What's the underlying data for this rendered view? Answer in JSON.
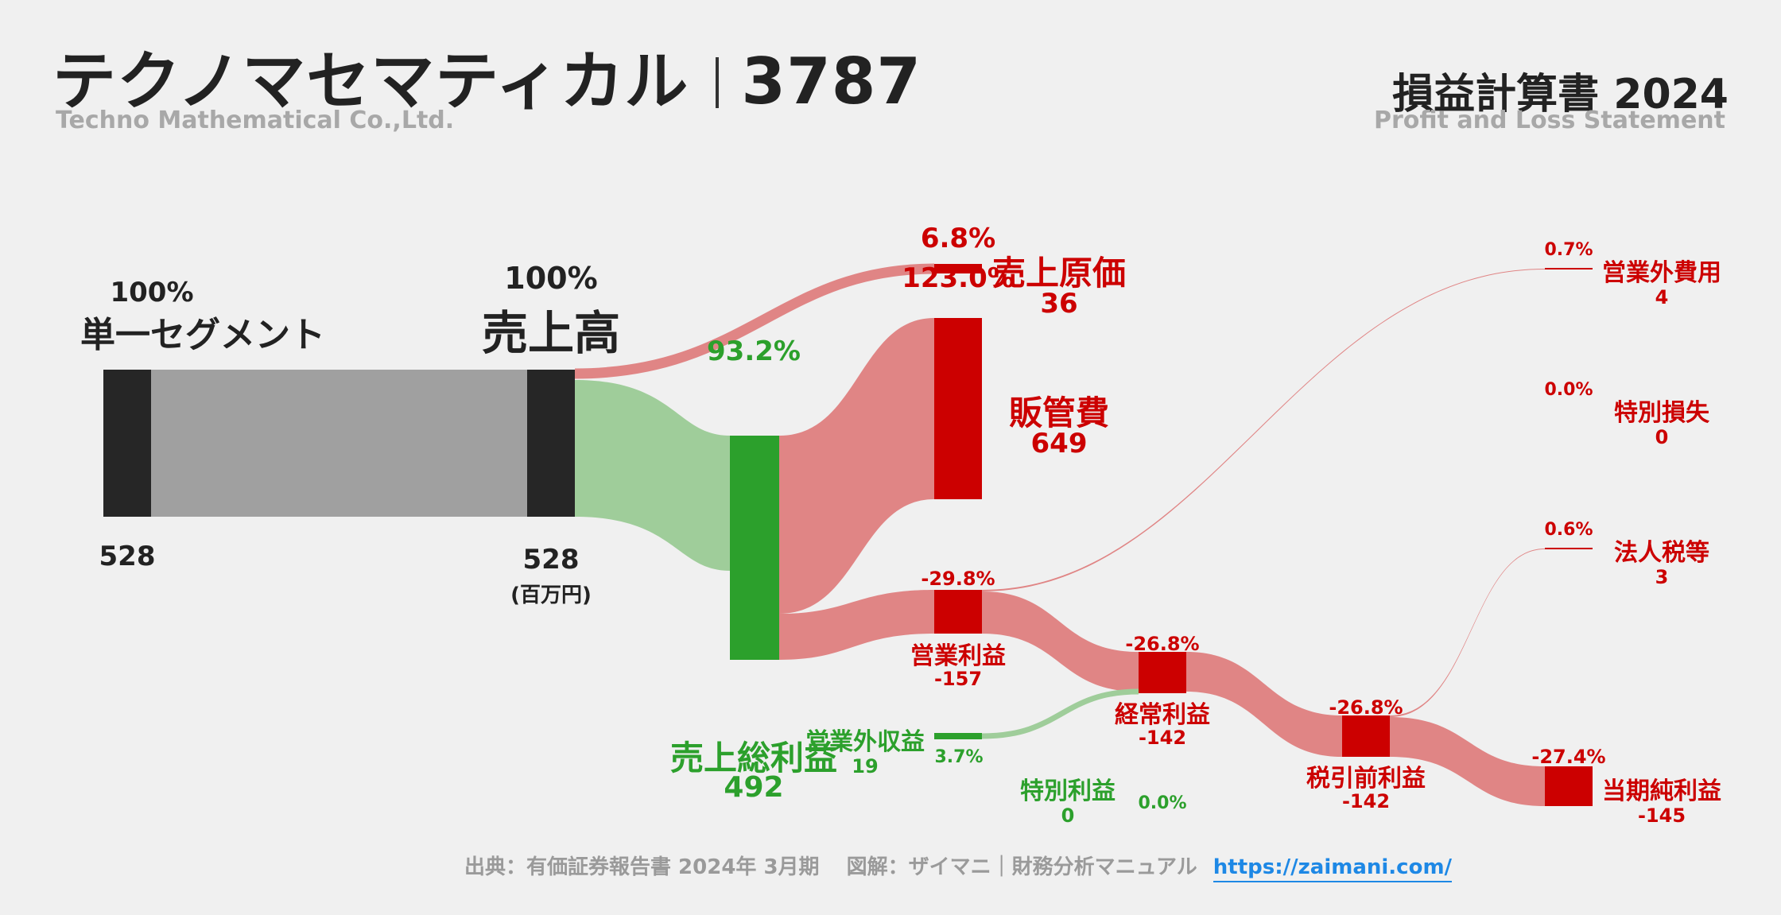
{
  "header": {
    "company": "テクノマセマティカル",
    "code": "3787",
    "company_en": "Techno Mathematical Co.,Ltd.",
    "statement": "損益計算書 2024",
    "statement_en": "Profit and Loss Statement"
  },
  "footer": {
    "source": "出典：有価証券報告書 2024年 3月期",
    "credit": "図解：ザイマニ｜財務分析マニュアル",
    "url": "https://zaimani.com/"
  },
  "unit": "(百万円)",
  "colors": {
    "dark": "#262626",
    "gray": "#a0a0a0",
    "green": "#2ca02c",
    "green_light": "#9fcd9a",
    "red": "#cc0000",
    "red_light": "#e08585"
  },
  "nodes": {
    "segment": {
      "label": "単一セグメント",
      "pct": "100%",
      "value": "528"
    },
    "revenue": {
      "label": "売上高",
      "pct": "100%",
      "value": "528"
    },
    "cogs": {
      "label": "売上原価",
      "pct": "6.8%",
      "value": "36"
    },
    "gross_profit": {
      "label": "売上総利益",
      "pct": "93.2%",
      "value": "492"
    },
    "sga": {
      "label": "販管費",
      "pct": "123.0%",
      "value": "649"
    },
    "operating_profit": {
      "label": "営業利益",
      "pct": "-29.8%",
      "value": "-157"
    },
    "non_op_income": {
      "label": "営業外収益",
      "pct": "3.7%",
      "value": "19"
    },
    "non_op_expense": {
      "label": "営業外費用",
      "pct": "0.7%",
      "value": "4"
    },
    "ordinary_profit": {
      "label": "経常利益",
      "pct": "-26.8%",
      "value": "-142"
    },
    "extraordinary_income": {
      "label": "特別利益",
      "pct": "0.0%",
      "value": "0"
    },
    "extraordinary_loss": {
      "label": "特別損失",
      "pct": "0.0%",
      "value": "0"
    },
    "pretax_profit": {
      "label": "税引前利益",
      "pct": "-26.8%",
      "value": "-142"
    },
    "taxes": {
      "label": "法人税等",
      "pct": "0.6%",
      "value": "3"
    },
    "net_profit": {
      "label": "当期純利益",
      "pct": "-27.4%",
      "value": "-145"
    }
  }
}
